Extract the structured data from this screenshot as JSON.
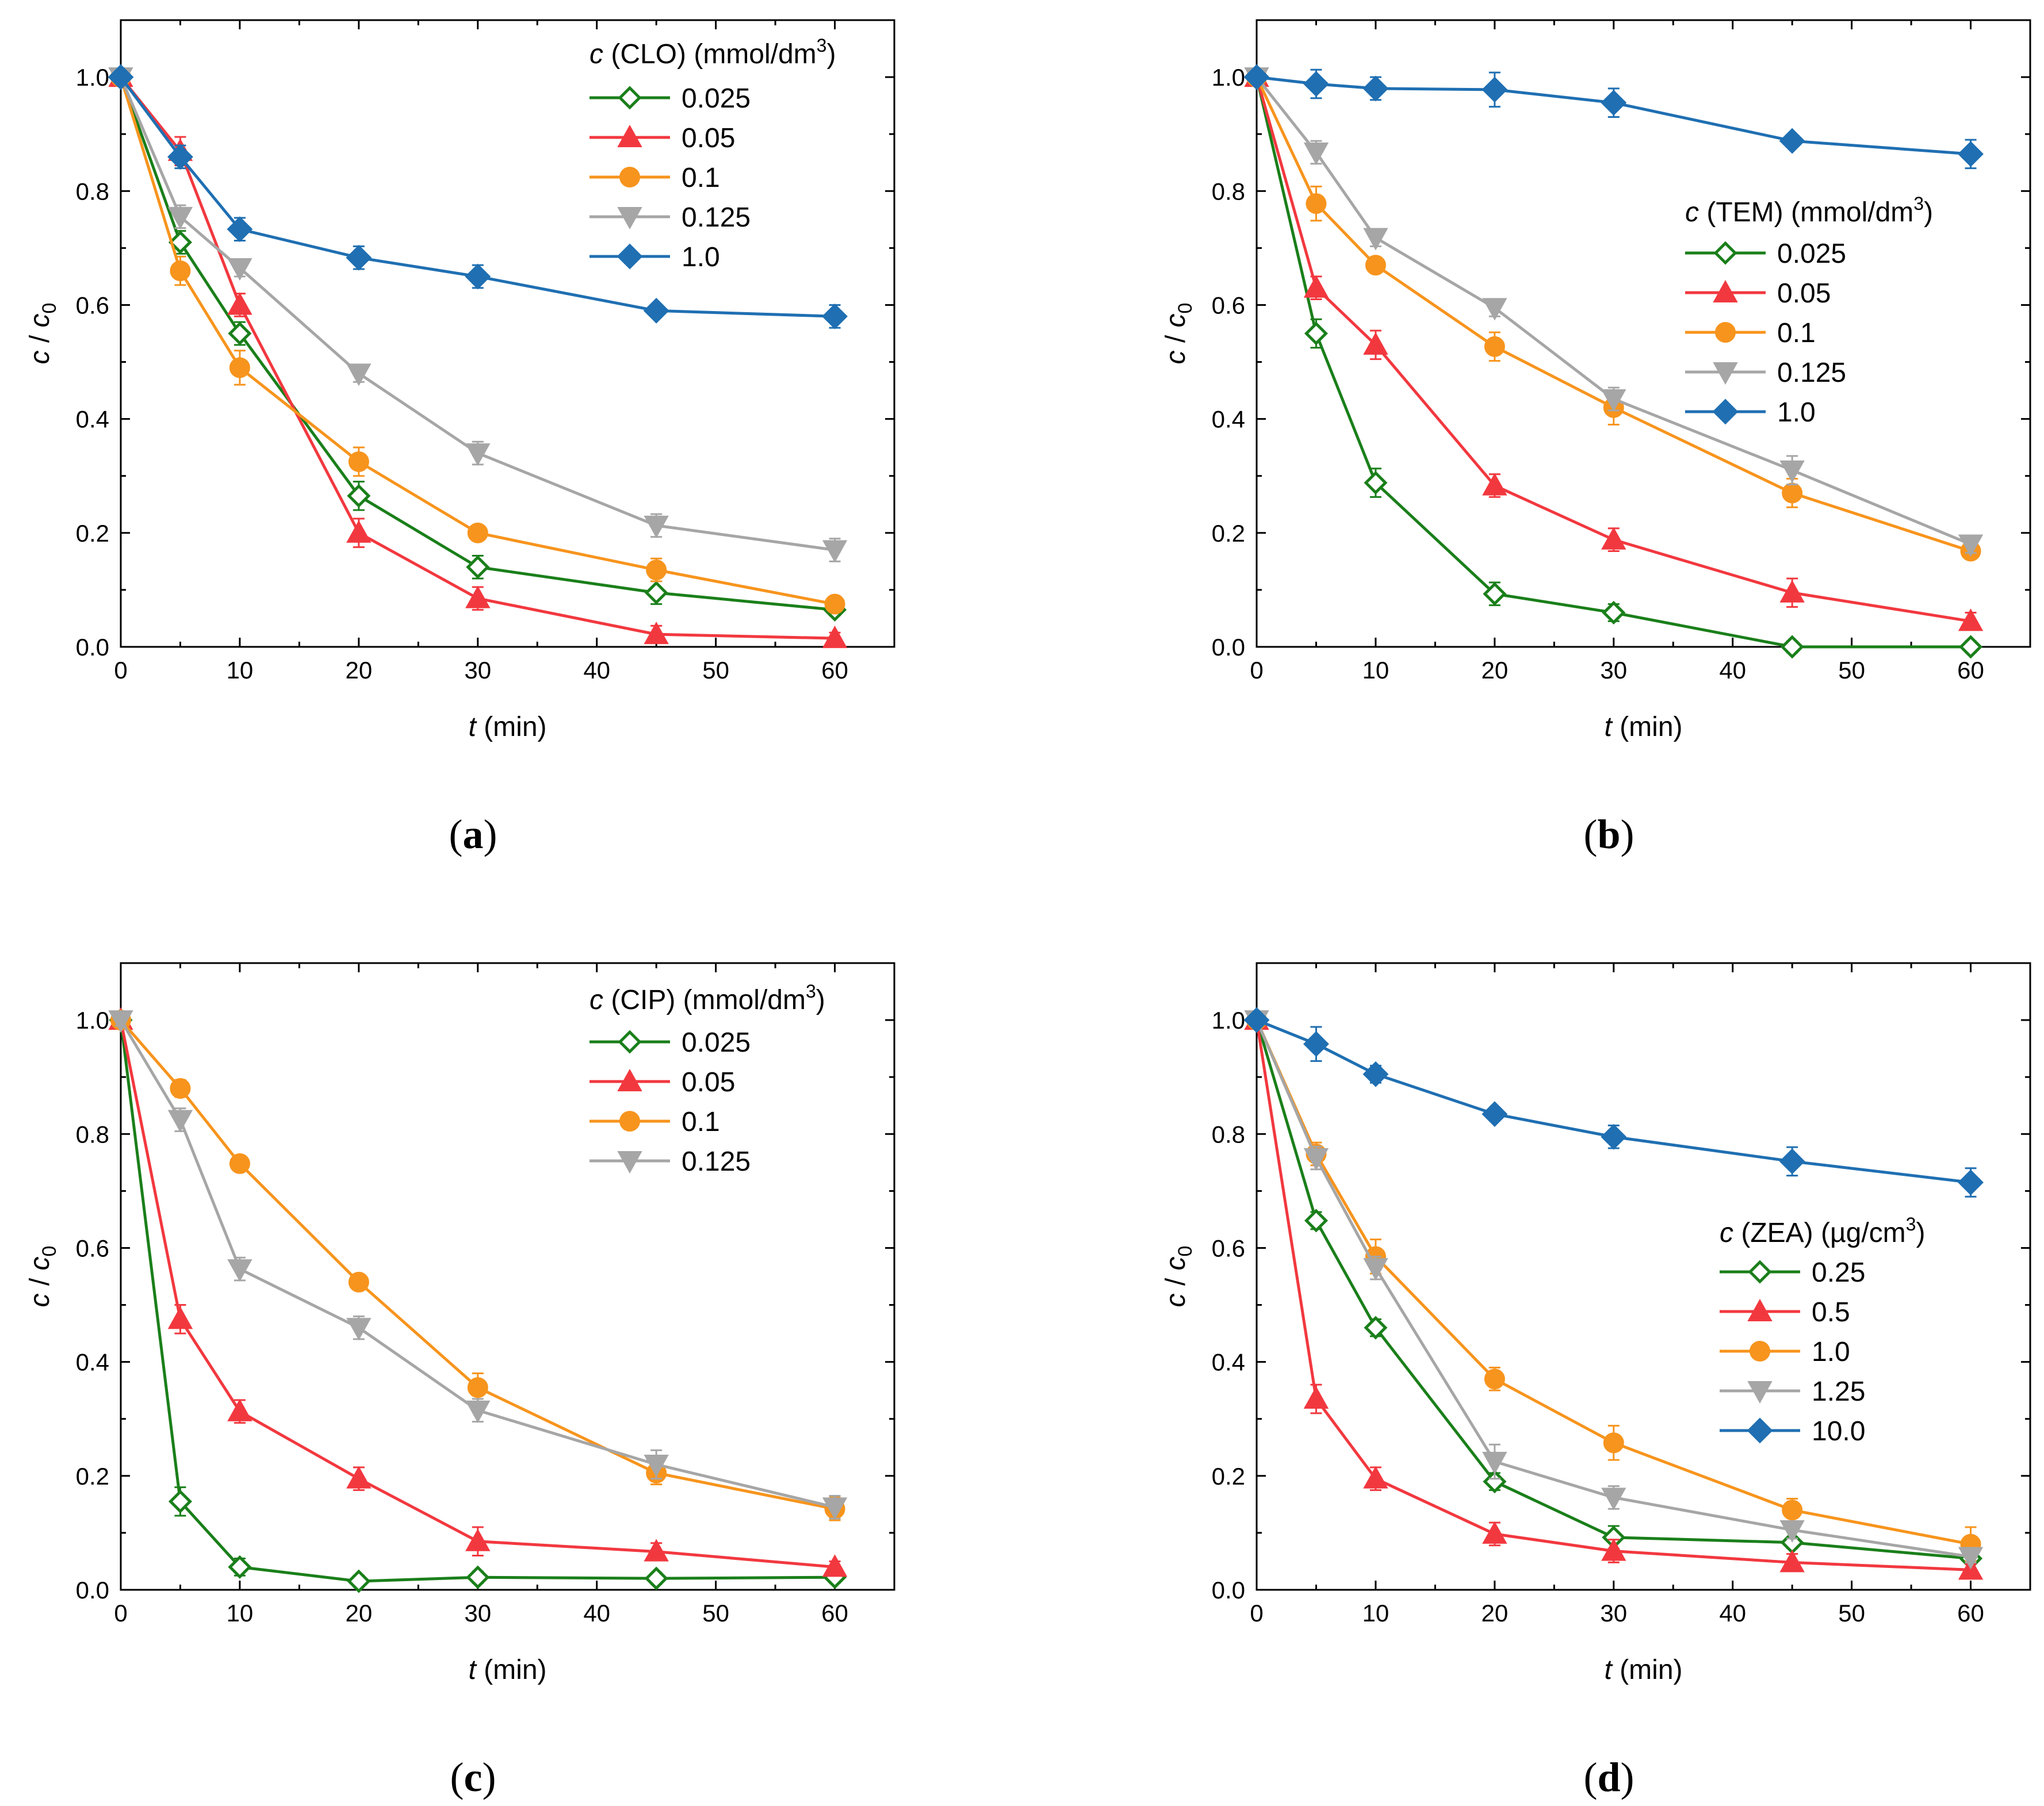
{
  "colors": {
    "green": "#1a7f1a",
    "red": "#f2383f",
    "orange": "#f7941d",
    "gray": "#a6a6a6",
    "blue": "#1f6fb2"
  },
  "chart_data": [
    {
      "panel": "(a)",
      "panel_bold": "a",
      "type": "line",
      "xlabel": "t (min)",
      "xlabel_var": "t",
      "xlabel_unit": "(min)",
      "ylabel_var1": "c",
      "ylabel_sep": "/",
      "ylabel_var2": "c",
      "ylabel_sub": "0",
      "xlim": [
        0,
        65
      ],
      "ylim": [
        0,
        1.1
      ],
      "xticks": [
        0,
        10,
        20,
        30,
        40,
        50,
        60
      ],
      "yticks": [
        0.0,
        0.2,
        0.4,
        0.6,
        0.8,
        1.0
      ],
      "ytick_labels": [
        "0.0",
        "0.2",
        "0.4",
        "0.6",
        "0.8",
        "1.0"
      ],
      "legend_position": "top-right",
      "legend_title": {
        "var": "c",
        "name": "(CLO)",
        "unit": "(mmol/dm",
        "sup": "3",
        "close": ")"
      },
      "x": [
        0,
        5,
        10,
        20,
        30,
        45,
        60
      ],
      "series": [
        {
          "name": "0.025",
          "color": "green",
          "marker": "diamond-open",
          "values": [
            1.0,
            0.71,
            0.55,
            0.265,
            0.14,
            0.095,
            0.065
          ],
          "errors": [
            0.01,
            0.02,
            0.02,
            0.025,
            0.02,
            0.02,
            0.01
          ]
        },
        {
          "name": "0.05",
          "color": "red",
          "marker": "triangle-up",
          "values": [
            1.0,
            0.87,
            0.6,
            0.2,
            0.085,
            0.022,
            0.015
          ],
          "errors": [
            0.01,
            0.025,
            0.02,
            0.025,
            0.02,
            0.015,
            0.01
          ]
        },
        {
          "name": "0.1",
          "color": "orange",
          "marker": "circle",
          "values": [
            1.0,
            0.66,
            0.49,
            0.325,
            0.2,
            0.135,
            0.075
          ],
          "errors": [
            0.01,
            0.025,
            0.03,
            0.025,
            0.01,
            0.02,
            0.01
          ]
        },
        {
          "name": "0.125",
          "color": "gray",
          "marker": "triangle-down",
          "values": [
            1.0,
            0.755,
            0.665,
            0.48,
            0.34,
            0.213,
            0.17
          ],
          "errors": [
            0.01,
            0.02,
            0.015,
            0.015,
            0.02,
            0.02,
            0.02
          ]
        },
        {
          "name": "1.0",
          "color": "blue",
          "marker": "diamond",
          "values": [
            1.0,
            0.86,
            0.733,
            0.683,
            0.65,
            0.59,
            0.58
          ],
          "errors": [
            0.01,
            0.02,
            0.02,
            0.02,
            0.02,
            0.01,
            0.02
          ]
        }
      ]
    },
    {
      "panel": "(b)",
      "panel_bold": "b",
      "type": "line",
      "xlabel": "t (min)",
      "xlabel_var": "t",
      "xlabel_unit": "(min)",
      "ylabel_var1": "c",
      "ylabel_sep": "/",
      "ylabel_var2": "c",
      "ylabel_sub": "0",
      "xlim": [
        0,
        65
      ],
      "ylim": [
        0,
        1.1
      ],
      "xticks": [
        0,
        10,
        20,
        30,
        40,
        50,
        60
      ],
      "yticks": [
        0.0,
        0.2,
        0.4,
        0.6,
        0.8,
        1.0
      ],
      "ytick_labels": [
        "0.0",
        "0.2",
        "0.4",
        "0.6",
        "0.8",
        "1.0"
      ],
      "legend_position": "middle-right",
      "legend_title": {
        "var": "c",
        "name": "(TEM)",
        "unit": "(mmol/dm",
        "sup": "3",
        "close": ")"
      },
      "x": [
        0,
        5,
        10,
        20,
        30,
        45,
        60
      ],
      "series": [
        {
          "name": "0.025",
          "color": "green",
          "marker": "diamond-open",
          "values": [
            1.0,
            0.55,
            0.288,
            0.093,
            0.06,
            0.0,
            0.0
          ],
          "errors": [
            0.01,
            0.025,
            0.025,
            0.02,
            0.015,
            0.01,
            0.01
          ]
        },
        {
          "name": "0.05",
          "color": "red",
          "marker": "triangle-up",
          "values": [
            1.0,
            0.63,
            0.53,
            0.283,
            0.188,
            0.095,
            0.045
          ],
          "errors": [
            0.01,
            0.02,
            0.025,
            0.02,
            0.02,
            0.025,
            0.015
          ]
        },
        {
          "name": "0.1",
          "color": "orange",
          "marker": "circle",
          "values": [
            1.0,
            0.778,
            0.67,
            0.527,
            0.42,
            0.27,
            0.168
          ],
          "errors": [
            0.01,
            0.03,
            0.01,
            0.025,
            0.03,
            0.025,
            0.01
          ]
        },
        {
          "name": "0.125",
          "color": "gray",
          "marker": "triangle-down",
          "values": [
            1.0,
            0.868,
            0.718,
            0.595,
            0.435,
            0.31,
            0.18
          ],
          "errors": [
            0.01,
            0.02,
            0.015,
            0.015,
            0.02,
            0.025,
            0.015
          ]
        },
        {
          "name": "1.0",
          "color": "blue",
          "marker": "diamond",
          "values": [
            1.0,
            0.988,
            0.98,
            0.978,
            0.955,
            0.888,
            0.865
          ],
          "errors": [
            0.01,
            0.025,
            0.02,
            0.03,
            0.025,
            0.01,
            0.025
          ]
        }
      ]
    },
    {
      "panel": "(c)",
      "panel_bold": "c",
      "type": "line",
      "xlabel": "t (min)",
      "xlabel_var": "t",
      "xlabel_unit": "(min)",
      "ylabel_var1": "c",
      "ylabel_sep": "/",
      "ylabel_var2": "c",
      "ylabel_sub": "0",
      "xlim": [
        0,
        65
      ],
      "ylim": [
        0,
        1.1
      ],
      "xticks": [
        0,
        10,
        20,
        30,
        40,
        50,
        60
      ],
      "yticks": [
        0.0,
        0.2,
        0.4,
        0.6,
        0.8,
        1.0
      ],
      "ytick_labels": [
        "0.0",
        "0.2",
        "0.4",
        "0.6",
        "0.8",
        "1.0"
      ],
      "legend_position": "top-right",
      "legend_title": {
        "var": "c",
        "name": "(CIP)",
        "unit": "(mmol/dm",
        "sup": "3",
        "close": ")"
      },
      "x": [
        0,
        5,
        10,
        20,
        30,
        45,
        60
      ],
      "series": [
        {
          "name": "0.025",
          "color": "green",
          "marker": "diamond-open",
          "values": [
            1.0,
            0.155,
            0.04,
            0.015,
            0.022,
            0.02,
            0.022
          ],
          "errors": [
            0.01,
            0.025,
            0.015,
            0.01,
            0.01,
            0.01,
            0.01
          ]
        },
        {
          "name": "0.05",
          "color": "red",
          "marker": "triangle-up",
          "values": [
            1.0,
            0.475,
            0.313,
            0.195,
            0.085,
            0.067,
            0.04
          ],
          "errors": [
            0.01,
            0.025,
            0.02,
            0.02,
            0.025,
            0.015,
            0.01
          ]
        },
        {
          "name": "0.1",
          "color": "orange",
          "marker": "circle",
          "values": [
            1.0,
            0.88,
            0.748,
            0.54,
            0.355,
            0.205,
            0.142
          ],
          "errors": [
            0.01,
            0.015,
            0.01,
            0.01,
            0.025,
            0.02,
            0.02
          ]
        },
        {
          "name": "0.125",
          "color": "gray",
          "marker": "triangle-down",
          "values": [
            1.0,
            0.825,
            0.563,
            0.46,
            0.315,
            0.22,
            0.145
          ],
          "errors": [
            0.01,
            0.02,
            0.02,
            0.02,
            0.02,
            0.025,
            0.02
          ]
        }
      ]
    },
    {
      "panel": "(d)",
      "panel_bold": "d",
      "type": "line",
      "xlabel": "t (min)",
      "xlabel_var": "t",
      "xlabel_unit": "(min)",
      "ylabel_var1": "c",
      "ylabel_sep": "/",
      "ylabel_var2": "c",
      "ylabel_sub": "0",
      "xlim": [
        0,
        65
      ],
      "ylim": [
        0,
        1.1
      ],
      "xticks": [
        0,
        10,
        20,
        30,
        40,
        50,
        60
      ],
      "yticks": [
        0.0,
        0.2,
        0.4,
        0.6,
        0.8,
        1.0
      ],
      "ytick_labels": [
        "0.0",
        "0.2",
        "0.4",
        "0.6",
        "0.8",
        "1.0"
      ],
      "legend_position": "middle-right",
      "legend_title": {
        "var": "c",
        "name": "(ZEA)",
        "unit": "(µg/cm",
        "sup": "3",
        "close": ")"
      },
      "x": [
        0,
        5,
        10,
        20,
        30,
        45,
        60
      ],
      "series": [
        {
          "name": "0.25",
          "color": "green",
          "marker": "diamond-open",
          "values": [
            1.0,
            0.648,
            0.46,
            0.19,
            0.092,
            0.083,
            0.055
          ],
          "errors": [
            0.01,
            0.015,
            0.015,
            0.015,
            0.02,
            0.01,
            0.01
          ]
        },
        {
          "name": "0.5",
          "color": "red",
          "marker": "triangle-up",
          "values": [
            1.0,
            0.335,
            0.195,
            0.098,
            0.068,
            0.048,
            0.035
          ],
          "errors": [
            0.01,
            0.025,
            0.02,
            0.02,
            0.02,
            0.015,
            0.01
          ]
        },
        {
          "name": "1.0",
          "color": "orange",
          "marker": "circle",
          "values": [
            1.0,
            0.765,
            0.585,
            0.37,
            0.258,
            0.14,
            0.08
          ],
          "errors": [
            0.01,
            0.02,
            0.03,
            0.02,
            0.03,
            0.02,
            0.03
          ]
        },
        {
          "name": "1.25",
          "color": "gray",
          "marker": "triangle-down",
          "values": [
            1.0,
            0.758,
            0.565,
            0.225,
            0.162,
            0.105,
            0.058
          ],
          "errors": [
            0.01,
            0.02,
            0.02,
            0.03,
            0.02,
            0.015,
            0.01
          ]
        },
        {
          "name": "10.0",
          "color": "blue",
          "marker": "diamond",
          "values": [
            1.0,
            0.958,
            0.905,
            0.835,
            0.795,
            0.752,
            0.715
          ],
          "errors": [
            0.01,
            0.03,
            0.015,
            0.01,
            0.02,
            0.025,
            0.025
          ]
        }
      ]
    }
  ]
}
